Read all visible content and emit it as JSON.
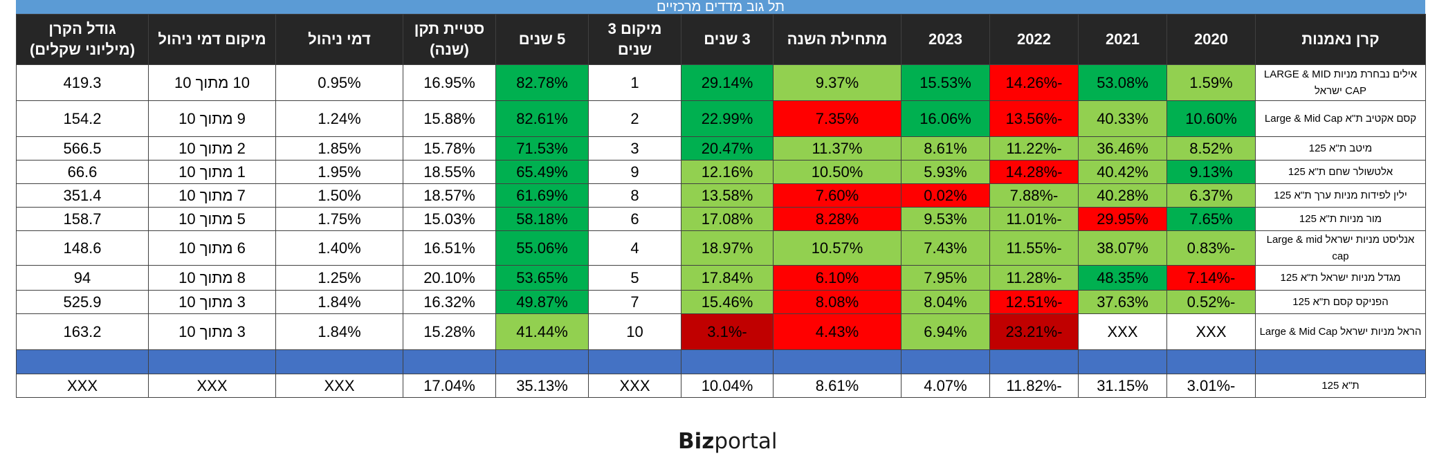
{
  "title": "תל גוב מדדים מרכזיים",
  "headers": {
    "fund": "קרן נאמנות",
    "y2020": "2020",
    "y2021": "2021",
    "y2022": "2022",
    "y2023": "2023",
    "ytd": "מתחילת השנה",
    "y3": "3 שנים",
    "rank3_l1": "מיקום 3",
    "rank3_l2": "שנים",
    "y5": "5 שנים",
    "std_l1": "סטיית תקן",
    "std_l2": "(שנה)",
    "fee": "דמי ניהול",
    "fee_rank": "מיקום דמי ניהול",
    "size_l1": "גודל הקרן",
    "size_l2": "(מיליוני שקלים)"
  },
  "rows": [
    {
      "fund": "אילים נבחרת מניות LARGE & MID CAP ישראל",
      "y2020": "1.59%",
      "y2021": "53.08%",
      "y2022": "-14.26%",
      "y2023": "15.53%",
      "ytd": "9.37%",
      "y3": "29.14%",
      "rank3": "1",
      "y5": "82.78%",
      "std": "16.95%",
      "fee": "0.95%",
      "fee_rank": "10 מתוך 10",
      "size": "419.3"
    },
    {
      "fund": "קסם אקטיב ת\"א Large & Mid Cap",
      "y2020": "10.60%",
      "y2021": "40.33%",
      "y2022": "-13.56%",
      "y2023": "16.06%",
      "ytd": "7.35%",
      "y3": "22.99%",
      "rank3": "2",
      "y5": "82.61%",
      "std": "15.88%",
      "fee": "1.24%",
      "fee_rank": "9 מתוך 10",
      "size": "154.2"
    },
    {
      "fund": "מיטב ת\"א 125",
      "y2020": "8.52%",
      "y2021": "36.46%",
      "y2022": "-11.22%",
      "y2023": "8.61%",
      "ytd": "11.37%",
      "y3": "20.47%",
      "rank3": "3",
      "y5": "71.53%",
      "std": "15.78%",
      "fee": "1.85%",
      "fee_rank": "2 מתוך 10",
      "size": "566.5"
    },
    {
      "fund": "אלטשולר שחם ת\"א 125",
      "y2020": "9.13%",
      "y2021": "40.42%",
      "y2022": "-14.28%",
      "y2023": "5.93%",
      "ytd": "10.50%",
      "y3": "12.16%",
      "rank3": "9",
      "y5": "65.49%",
      "std": "18.55%",
      "fee": "1.95%",
      "fee_rank": "1 מתוך 10",
      "size": "66.6"
    },
    {
      "fund": "ילין לפידות מניות ערך ת\"א 125",
      "y2020": "6.37%",
      "y2021": "40.28%",
      "y2022": "-7.88%",
      "y2023": "0.02%",
      "ytd": "7.60%",
      "y3": "13.58%",
      "rank3": "8",
      "y5": "61.69%",
      "std": "18.57%",
      "fee": "1.50%",
      "fee_rank": "7 מתוך 10",
      "size": "351.4"
    },
    {
      "fund": "מור מניות ת\"א 125",
      "y2020": "7.65%",
      "y2021": "29.95%",
      "y2022": "-11.01%",
      "y2023": "9.53%",
      "ytd": "8.28%",
      "y3": "17.08%",
      "rank3": "6",
      "y5": "58.18%",
      "std": "15.03%",
      "fee": "1.75%",
      "fee_rank": "5 מתוך 10",
      "size": "158.7"
    },
    {
      "fund": "אנליסט מניות ישראל Large & mid cap",
      "y2020": "-0.83%",
      "y2021": "38.07%",
      "y2022": "-11.55%",
      "y2023": "7.43%",
      "ytd": "10.57%",
      "y3": "18.97%",
      "rank3": "4",
      "y5": "55.06%",
      "std": "16.51%",
      "fee": "1.40%",
      "fee_rank": "6 מתוך 10",
      "size": "148.6"
    },
    {
      "fund": "מגדל מניות ישראל ת\"א 125",
      "y2020": "-7.14%",
      "y2021": "48.35%",
      "y2022": "-11.28%",
      "y2023": "7.95%",
      "ytd": "6.10%",
      "y3": "17.84%",
      "rank3": "5",
      "y5": "53.65%",
      "std": "20.10%",
      "fee": "1.25%",
      "fee_rank": "8 מתוך 10",
      "size": "94"
    },
    {
      "fund": "הפניקס קסם ת\"א 125",
      "y2020": "-0.52%",
      "y2021": "37.63%",
      "y2022": "-12.51%",
      "y2023": "8.04%",
      "ytd": "8.08%",
      "y3": "15.46%",
      "rank3": "7",
      "y5": "49.87%",
      "std": "16.32%",
      "fee": "1.84%",
      "fee_rank": "3 מתוך 10",
      "size": "525.9"
    },
    {
      "fund": "הראל מניות ישראל Large & Mid Cap",
      "y2020": "XXX",
      "y2021": "XXX",
      "y2022": "-23.21%",
      "y2023": "6.94%",
      "ytd": "4.43%",
      "y3": "-3.1%",
      "rank3": "10",
      "y5": "41.44%",
      "std": "15.28%",
      "fee": "1.84%",
      "fee_rank": "3 מתוך 10",
      "size": "163.2"
    }
  ],
  "index_row": {
    "fund": "ת\"א 125",
    "y2020": "-3.01%",
    "y2021": "31.15%",
    "y2022": "-11.82%",
    "y2023": "4.07%",
    "ytd": "8.61%",
    "y3": "10.04%",
    "rank3": "XXX",
    "y5": "35.13%",
    "std": "17.04%",
    "fee": "XXX",
    "fee_rank": "XXX",
    "size": "XXX"
  },
  "colors": {
    "dark_green": "#00b050",
    "light_green": "#92d050",
    "red": "#ff0000",
    "dark_red": "#c00000",
    "header": "#262626",
    "title_bar": "#5b9bd5",
    "spacer": "#4472c4"
  },
  "logo": {
    "part1": "Biz",
    "part2": "portal"
  }
}
